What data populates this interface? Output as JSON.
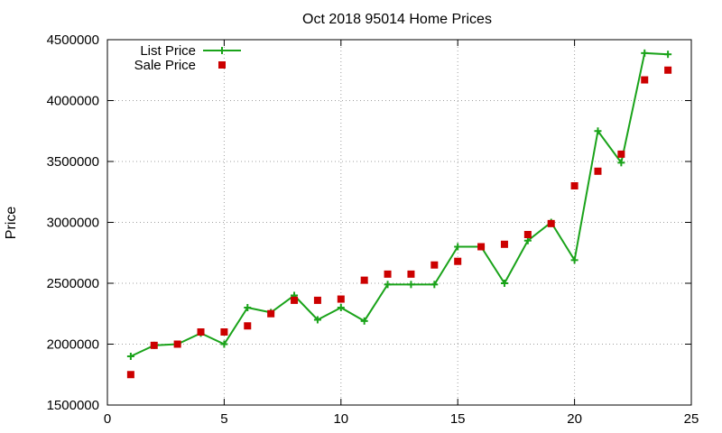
{
  "chart_data": {
    "type": "line",
    "title": "Oct 2018 95014 Home Prices",
    "xlabel": "",
    "ylabel": "Price",
    "xlim": [
      0,
      25
    ],
    "ylim": [
      1500000,
      4500000
    ],
    "xticks": [
      0,
      5,
      10,
      15,
      20,
      25
    ],
    "yticks": [
      1500000,
      2000000,
      2500000,
      3000000,
      3500000,
      4000000,
      4500000
    ],
    "grid": true,
    "legend_position": "top-left",
    "series": [
      {
        "name": "List Price",
        "style": "line-with-plus-markers",
        "color": "#1aa31a",
        "x": [
          1,
          2,
          3,
          4,
          5,
          6,
          7,
          8,
          9,
          10,
          11,
          12,
          13,
          14,
          15,
          16,
          17,
          18,
          19,
          20,
          21,
          22,
          23,
          24
        ],
        "y": [
          1900000,
          1990000,
          2000000,
          2090000,
          2000000,
          2300000,
          2260000,
          2400000,
          2200000,
          2300000,
          2190000,
          2490000,
          2490000,
          2490000,
          2800000,
          2800000,
          2500000,
          2850000,
          3000000,
          2690000,
          3750000,
          3490000,
          4390000,
          4380000
        ]
      },
      {
        "name": "Sale Price",
        "style": "square-markers",
        "color": "#cc0000",
        "x": [
          1,
          2,
          3,
          4,
          5,
          6,
          7,
          8,
          9,
          10,
          11,
          12,
          13,
          14,
          15,
          16,
          17,
          18,
          19,
          20,
          21,
          22,
          23,
          24
        ],
        "y": [
          1750000,
          1990000,
          2000000,
          2100000,
          2100000,
          2150000,
          2250000,
          2360000,
          2360000,
          2370000,
          2525000,
          2575000,
          2575000,
          2650000,
          2680000,
          2800000,
          2820000,
          2900000,
          2990000,
          3300000,
          3420000,
          3560000,
          4170000,
          4250000
        ]
      }
    ]
  }
}
